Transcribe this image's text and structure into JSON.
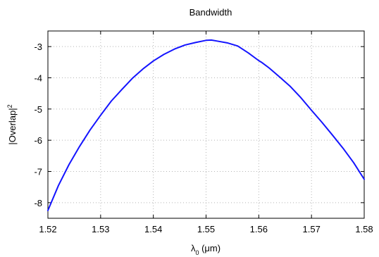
{
  "chart_data": {
    "type": "line",
    "title": "Bandwidth",
    "xlabel": "λ",
    "xlabel_sub": "0",
    "xlabel_unit": " (μm)",
    "ylabel": "|Overlap|",
    "ylabel_sup": "2",
    "xlim": [
      1.52,
      1.58
    ],
    "ylim": [
      -8.5,
      -2.5
    ],
    "xticks": [
      1.52,
      1.53,
      1.54,
      1.55,
      1.56,
      1.57,
      1.58
    ],
    "xtick_labels": [
      "1.52",
      "1.53",
      "1.54",
      "1.55",
      "1.56",
      "1.57",
      "1.58"
    ],
    "yticks": [
      -3,
      -4,
      -5,
      -6,
      -7,
      -8
    ],
    "ytick_labels": [
      "-3",
      "-4",
      "-5",
      "-6",
      "-7",
      "-8"
    ],
    "grid": true,
    "series": [
      {
        "color": "#1414ff",
        "x": [
          1.52,
          1.522,
          1.524,
          1.526,
          1.528,
          1.53,
          1.532,
          1.534,
          1.536,
          1.538,
          1.54,
          1.542,
          1.544,
          1.546,
          1.548,
          1.55,
          1.551,
          1.552,
          1.554,
          1.556,
          1.558,
          1.56,
          1.5605,
          1.562,
          1.564,
          1.566,
          1.568,
          1.57,
          1.572,
          1.574,
          1.576,
          1.578,
          1.58
        ],
        "y": [
          -8.25,
          -7.45,
          -6.78,
          -6.2,
          -5.67,
          -5.2,
          -4.75,
          -4.38,
          -4.02,
          -3.72,
          -3.46,
          -3.25,
          -3.08,
          -2.95,
          -2.87,
          -2.8,
          -2.79,
          -2.82,
          -2.88,
          -2.98,
          -3.2,
          -3.45,
          -3.5,
          -3.69,
          -3.98,
          -4.28,
          -4.64,
          -5.04,
          -5.43,
          -5.84,
          -6.26,
          -6.72,
          -7.25
        ]
      }
    ]
  }
}
